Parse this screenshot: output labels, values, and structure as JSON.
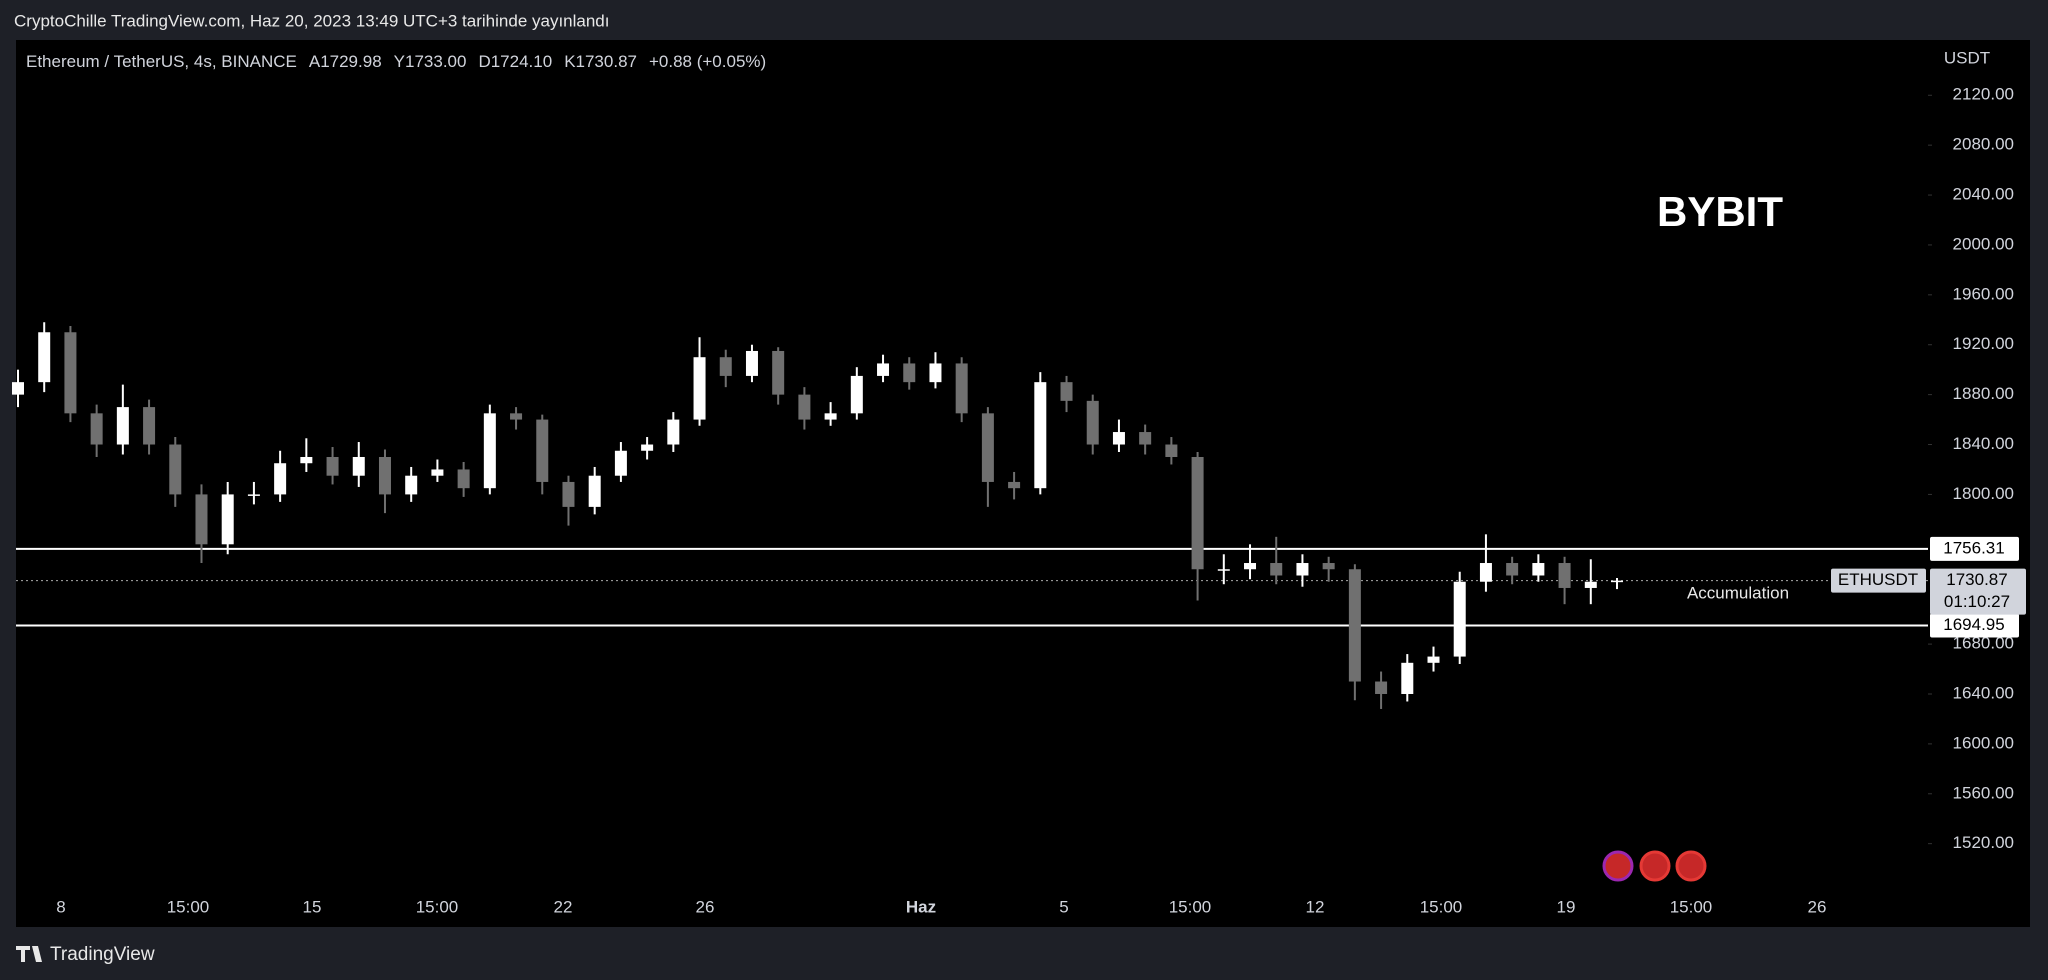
{
  "header": {
    "title": "CryptoChille TradingView.com, Haz 20, 2023 13:49 UTC+3 tarihinde yayınlandı"
  },
  "footer": {
    "brand": "TradingView"
  },
  "chart_data": {
    "type": "candlestick",
    "title": "Ethereum / TetherUS, 4s, BINANCE",
    "ohlc_labels": [
      "A1729.98",
      "Y1733.00",
      "D1724.10",
      "K1730.87",
      "+0.88 (+0.05%)"
    ],
    "currency": "USDT",
    "watermark": "BYBIT",
    "open": [
      1880,
      1890,
      1930,
      1865,
      1840,
      1870,
      1840,
      1800,
      1760,
      1800,
      1800,
      1825,
      1830,
      1815,
      1830,
      1800,
      1815,
      1820,
      1805,
      1865,
      1860,
      1810,
      1790,
      1815,
      1835,
      1840,
      1860,
      1910,
      1895,
      1915,
      1880,
      1860,
      1865,
      1895,
      1905,
      1890,
      1905,
      1865,
      1810,
      1805,
      1890,
      1875,
      1840,
      1850,
      1840,
      1830,
      1740,
      1740,
      1745,
      1735,
      1745,
      1740,
      1650,
      1640,
      1665,
      1670,
      1730,
      1745,
      1735,
      1745,
      1725,
      1729.98
    ],
    "high": [
      1900,
      1938,
      1935,
      1872,
      1888,
      1876,
      1846,
      1808,
      1810,
      1810,
      1835,
      1845,
      1838,
      1842,
      1836,
      1822,
      1828,
      1826,
      1872,
      1870,
      1864,
      1815,
      1822,
      1842,
      1846,
      1866,
      1926,
      1916,
      1920,
      1918,
      1886,
      1874,
      1902,
      1912,
      1910,
      1914,
      1910,
      1870,
      1818,
      1898,
      1895,
      1880,
      1860,
      1856,
      1846,
      1834,
      1752,
      1760,
      1766,
      1752,
      1750,
      1744,
      1658,
      1672,
      1678,
      1738,
      1768,
      1750,
      1752,
      1750,
      1748,
      1733
    ],
    "low": [
      1870,
      1882,
      1858,
      1830,
      1832,
      1832,
      1790,
      1745,
      1752,
      1792,
      1794,
      1818,
      1808,
      1806,
      1785,
      1794,
      1810,
      1798,
      1800,
      1852,
      1800,
      1775,
      1784,
      1810,
      1828,
      1834,
      1855,
      1886,
      1890,
      1872,
      1852,
      1855,
      1860,
      1890,
      1884,
      1885,
      1858,
      1790,
      1796,
      1800,
      1866,
      1832,
      1834,
      1832,
      1824,
      1715,
      1728,
      1732,
      1728,
      1726,
      1730,
      1635,
      1628,
      1634,
      1658,
      1664,
      1722,
      1728,
      1730,
      1712,
      1712,
      1724.1
    ],
    "close": [
      1890,
      1930,
      1865,
      1840,
      1870,
      1840,
      1800,
      1760,
      1800,
      1800,
      1825,
      1830,
      1815,
      1830,
      1800,
      1815,
      1820,
      1805,
      1865,
      1860,
      1810,
      1790,
      1815,
      1835,
      1840,
      1860,
      1910,
      1895,
      1915,
      1880,
      1860,
      1865,
      1895,
      1905,
      1890,
      1905,
      1865,
      1810,
      1805,
      1890,
      1875,
      1840,
      1850,
      1840,
      1830,
      1740,
      1740,
      1745,
      1735,
      1745,
      1740,
      1650,
      1640,
      1665,
      1670,
      1730,
      1745,
      1735,
      1745,
      1725,
      1730,
      1730.87
    ],
    "up_color": "#ffffff",
    "down_color": "#707070",
    "ylim": [
      1453.2,
      2164.3
    ],
    "yticks": [
      {
        "value": 2120,
        "label": "2120.00"
      },
      {
        "value": 2080,
        "label": "2080.00"
      },
      {
        "value": 2040,
        "label": "2040.00"
      },
      {
        "value": 2000,
        "label": "2000.00"
      },
      {
        "value": 1960,
        "label": "1960.00"
      },
      {
        "value": 1920,
        "label": "1920.00"
      },
      {
        "value": 1880,
        "label": "1880.00"
      },
      {
        "value": 1840,
        "label": "1840.00"
      },
      {
        "value": 1800,
        "label": "1800.00"
      },
      {
        "value": 1680,
        "label": "1680.00"
      },
      {
        "value": 1640,
        "label": "1640.00"
      },
      {
        "value": 1600,
        "label": "1600.00"
      },
      {
        "value": 1560,
        "label": "1560.00"
      },
      {
        "value": 1520,
        "label": "1520.00"
      }
    ],
    "time_labels": [
      "8",
      "15:00",
      "15",
      "15:00",
      "22",
      "26",
      "Haz",
      "5",
      "15:00",
      "12",
      "15:00",
      "19",
      "15:00",
      "26"
    ],
    "levels": [
      {
        "value": 1756.31,
        "label": "1756.31"
      },
      {
        "value": 1694.95,
        "label": "1694.95"
      }
    ],
    "last_price": {
      "value": 1730.87,
      "label": "1730.87",
      "symbol": "ETHUSDT",
      "countdown": "01:10:27"
    },
    "annotation": "Accumulation"
  }
}
